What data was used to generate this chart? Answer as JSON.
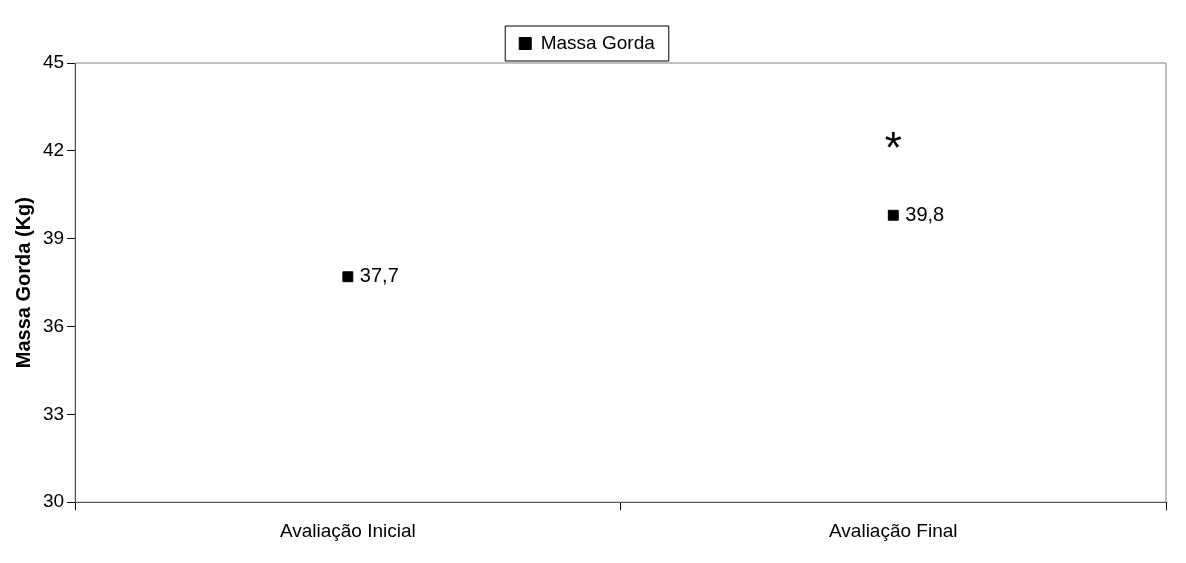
{
  "chart_data": {
    "type": "scatter",
    "ylabel": "Massa Gorda (Kg)",
    "categories": [
      "Avaliação Inicial",
      "Avaliação Final"
    ],
    "series": [
      {
        "name": "Massa Gorda",
        "color": "#000000",
        "values": [
          37.7,
          39.8
        ],
        "value_labels": [
          "37,7",
          "39,8"
        ]
      }
    ],
    "ylim": [
      30,
      45
    ],
    "yticks": [
      30,
      33,
      36,
      39,
      42,
      45
    ],
    "grid": false,
    "legend": "top",
    "marker": "square",
    "annotations": [
      "*"
    ]
  }
}
